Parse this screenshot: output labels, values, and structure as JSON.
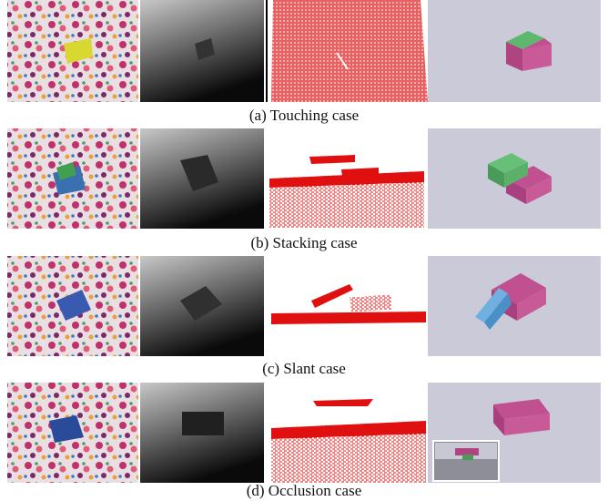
{
  "captions": [
    "(a) Touching case",
    "(b) Stacking case",
    "(c) Slant case",
    "(d) Occlusion case"
  ]
}
